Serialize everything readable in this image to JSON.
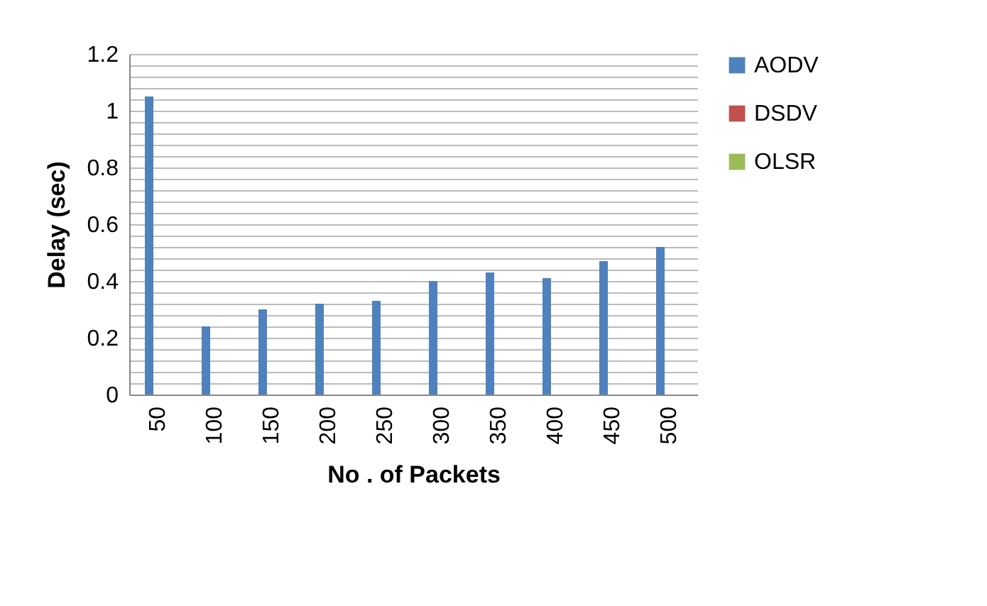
{
  "chart_data": {
    "type": "bar",
    "xlabel": "No . of Packets",
    "ylabel": "Delay (sec)",
    "categories": [
      "50",
      "100",
      "150",
      "200",
      "250",
      "300",
      "350",
      "400",
      "450",
      "500"
    ],
    "series": [
      {
        "name": "AODV",
        "color": "#4f81bd",
        "values": [
          1.05,
          0.24,
          0.3,
          0.32,
          0.33,
          0.4,
          0.43,
          0.41,
          0.47,
          0.52
        ]
      },
      {
        "name": "DSDV",
        "color": "#c0504d",
        "values": [
          null,
          null,
          null,
          null,
          null,
          null,
          null,
          null,
          null,
          null
        ]
      },
      {
        "name": "OLSR",
        "color": "#9bbb59",
        "values": [
          null,
          null,
          null,
          null,
          null,
          null,
          null,
          null,
          null,
          null
        ]
      }
    ],
    "ylim": [
      0,
      1.2
    ],
    "yticks": [
      0,
      {
        "value": 0.04,
        "label": null
      },
      {
        "value": 0.08,
        "label": null
      },
      {
        "value": 0.12,
        "label": null
      },
      {
        "value": 0.16,
        "label": null
      },
      0.2,
      {
        "value": 0.24,
        "label": null
      },
      {
        "value": 0.28,
        "label": null
      },
      {
        "value": 0.32,
        "label": null
      },
      {
        "value": 0.36,
        "label": null
      },
      0.4,
      {
        "value": 0.44,
        "label": null
      },
      {
        "value": 0.48,
        "label": null
      },
      {
        "value": 0.52,
        "label": null
      },
      {
        "value": 0.56,
        "label": null
      },
      0.6,
      {
        "value": 0.64,
        "label": null
      },
      {
        "value": 0.68,
        "label": null
      },
      {
        "value": 0.72,
        "label": null
      },
      {
        "value": 0.76,
        "label": null
      },
      0.8,
      {
        "value": 0.84,
        "label": null
      },
      {
        "value": 0.88,
        "label": null
      },
      {
        "value": 0.92,
        "label": null
      },
      {
        "value": 0.96,
        "label": null
      },
      1,
      {
        "value": 1.04,
        "label": null
      },
      {
        "value": 1.08,
        "label": null
      },
      {
        "value": 1.12,
        "label": null
      },
      {
        "value": 1.16,
        "label": null
      },
      1.2
    ],
    "grid": "y",
    "legend": "right"
  }
}
